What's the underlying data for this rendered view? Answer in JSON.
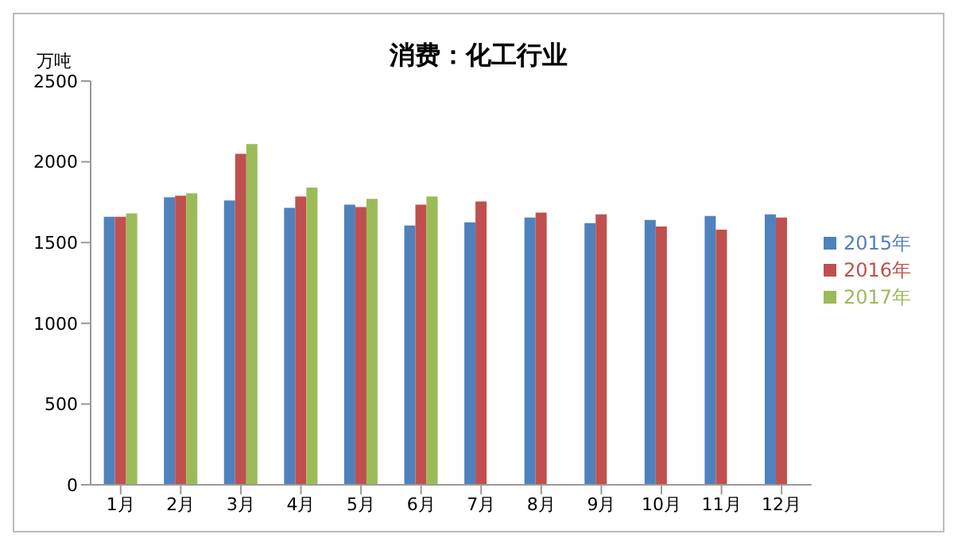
{
  "chart_data": {
    "type": "bar",
    "title": "消费：化工行业",
    "ylabel": "万吨",
    "categories": [
      "1月",
      "2月",
      "3月",
      "4月",
      "5月",
      "6月",
      "7月",
      "8月",
      "9月",
      "10月",
      "11月",
      "12月"
    ],
    "series": [
      {
        "name": "2015年",
        "color": "#4f81bd",
        "values": [
          1660,
          1780,
          1760,
          1715,
          1735,
          1605,
          1625,
          1655,
          1620,
          1640,
          1665,
          1675
        ]
      },
      {
        "name": "2016年",
        "color": "#c0504d",
        "values": [
          1660,
          1790,
          2050,
          1785,
          1720,
          1735,
          1755,
          1685,
          1675,
          1600,
          1580,
          1655
        ]
      },
      {
        "name": "2017年",
        "color": "#9bbb59",
        "values": [
          1680,
          1805,
          2110,
          1840,
          1770,
          1785,
          null,
          null,
          null,
          null,
          null,
          null
        ]
      }
    ],
    "ylim": [
      0,
      2500
    ],
    "yticks": [
      0,
      500,
      1000,
      1500,
      2000,
      2500
    ],
    "grid": false,
    "legend": "right"
  }
}
